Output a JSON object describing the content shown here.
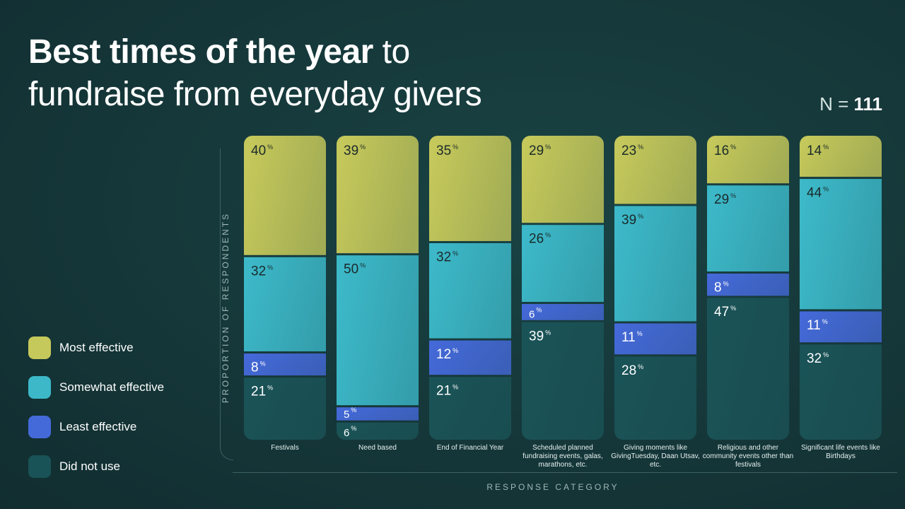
{
  "title": {
    "bold": "Best times of the year",
    "light_1": " to",
    "line2": "fundraise from everyday givers"
  },
  "n_label": {
    "prefix": "N = ",
    "value": "111"
  },
  "chart_data": {
    "type": "bar",
    "stacked": true,
    "xlabel": "RESPONSE CATEGORY",
    "ylabel": "PROPORTION OF RESPONDENTS",
    "unit": "%",
    "categories": [
      "Festivals",
      "Need based",
      "End of Financial Year",
      "Scheduled planned fundraising events, galas, marathons, etc.",
      "Giving moments like GivingTuesday, Daan Utsav, etc.",
      "Religious and other community events other than festivals",
      "Significant life events like Birthdays"
    ],
    "series": [
      {
        "name": "Most effective",
        "color": "#c5c85a",
        "label_color": "#1a2a2a",
        "values": [
          40,
          39,
          35,
          29,
          23,
          16,
          14
        ]
      },
      {
        "name": "Somewhat effective",
        "color": "#3cb8c8",
        "label_color": "#1a2a2a",
        "values": [
          32,
          50,
          32,
          26,
          39,
          29,
          44
        ]
      },
      {
        "name": "Least effective",
        "color": "#4469d8",
        "label_color": "#ffffff",
        "values": [
          8,
          5,
          12,
          6,
          11,
          8,
          11
        ]
      },
      {
        "name": "Did not use",
        "color": "#1a5357",
        "label_color": "#ffffff",
        "values": [
          21,
          6,
          21,
          39,
          28,
          47,
          32
        ]
      }
    ],
    "legend_position": "left"
  }
}
